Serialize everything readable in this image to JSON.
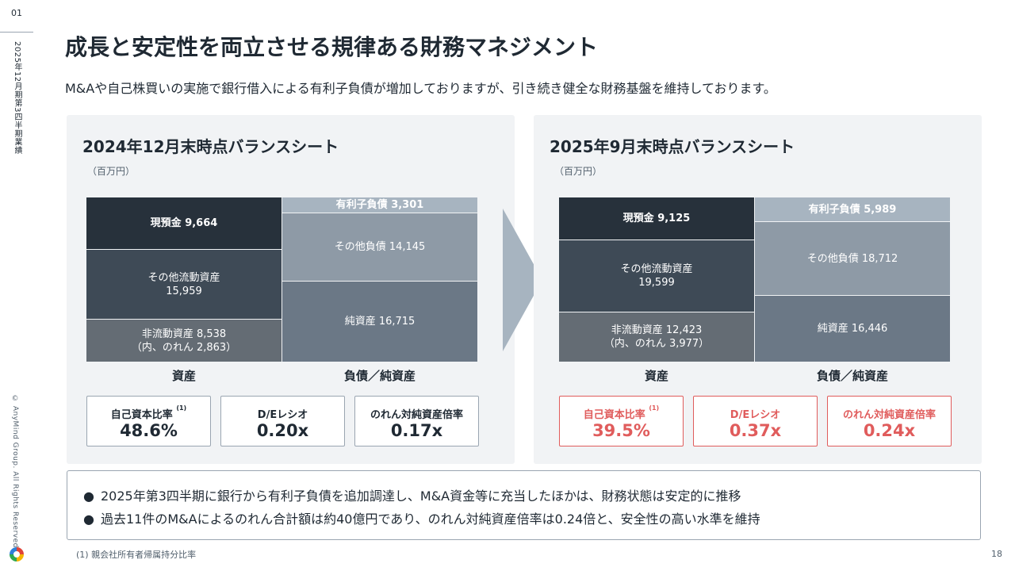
{
  "sidebar": {
    "page_label": "01",
    "section": "2025年12月期第3四半期業績",
    "copyright": "© AnyMind Group. All Rights Reserved."
  },
  "title": "成長と安定性を両立させる規律ある財務マネジメント",
  "subtitle": "M&Aや自己株買いの実施で銀行借入による有利子負債が増加しておりますが、引き続き健全な財務基盤を維持しております。",
  "left": {
    "title": "2024年12月末時点バランスシート",
    "unit": "（百万円）",
    "assets": [
      {
        "label": "現預金 9,664",
        "label2": ""
      },
      {
        "label": "その他流動資産",
        "label2": "15,959"
      },
      {
        "label": "非流動資産 8,538",
        "label2": "（内、のれん 2,863）"
      }
    ],
    "liabilities": [
      {
        "label": "有利子負債 3,301"
      },
      {
        "label": "その他負債 14,145"
      },
      {
        "label": "純資産 16,715"
      }
    ],
    "assets_label": "資産",
    "liab_label": "負債／純資産",
    "kpis": [
      {
        "label": "自己資本比率",
        "note": "(1)",
        "value": "48.6%"
      },
      {
        "label": "D/Eレシオ",
        "note": "",
        "value": "0.20x"
      },
      {
        "label": "のれん対純資産倍率",
        "note": "",
        "value": "0.17x"
      }
    ]
  },
  "right": {
    "title": "2025年9月末時点バランスシート",
    "unit": "（百万円）",
    "assets": [
      {
        "label": "現預金 9,125",
        "label2": ""
      },
      {
        "label": "その他流動資産",
        "label2": "19,599"
      },
      {
        "label": "非流動資産 12,423",
        "label2": "（内、のれん 3,977）"
      }
    ],
    "liabilities": [
      {
        "label": "有利子負債 5,989"
      },
      {
        "label": "その他負債 18,712"
      },
      {
        "label": "純資産 16,446"
      }
    ],
    "assets_label": "資産",
    "liab_label": "負債／純資産",
    "kpis": [
      {
        "label": "自己資本比率",
        "note": "(1)",
        "value": "39.5%"
      },
      {
        "label": "D/Eレシオ",
        "note": "",
        "value": "0.37x"
      },
      {
        "label": "のれん対純資産倍率",
        "note": "",
        "value": "0.24x"
      }
    ]
  },
  "notes": {
    "bullet": "●",
    "items": [
      "2025年第3四半期に銀行から有利子負債を追加調達し、M&A資金等に充当したほかは、財務状態は安定的に推移",
      "過去11件のM&Aによるのれん合計額は約40億円であり、のれん対純資産倍率は0.24倍と、安全性の高い水準を維持"
    ]
  },
  "footnote": "(1) 親会社所有者帰属持分比率",
  "page_number": "18",
  "colors": {
    "highlight": "#e05c5c",
    "panel_bg": "#f1f3f5"
  }
}
